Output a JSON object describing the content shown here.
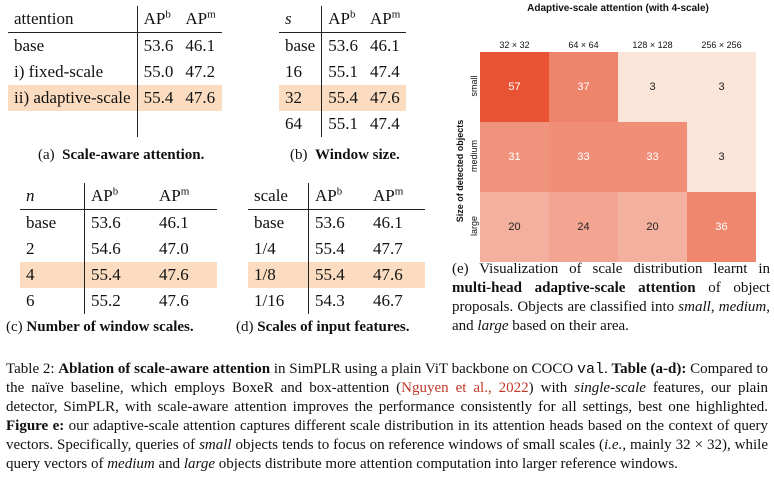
{
  "table_a": {
    "headers": [
      "attention",
      "AP",
      "b",
      "AP",
      "m"
    ],
    "rows": [
      [
        "base",
        "53.6",
        "46.1"
      ],
      [
        "i) fixed-scale",
        "55.0",
        "47.2"
      ],
      [
        "ii) adaptive-scale",
        "55.4",
        "47.6"
      ]
    ],
    "caption_prefix": "(a)",
    "caption": "Scale-aware attention."
  },
  "table_b": {
    "headers": [
      "s",
      "AP",
      "b",
      "AP",
      "m"
    ],
    "rows": [
      [
        "base",
        "53.6",
        "46.1"
      ],
      [
        "16",
        "55.1",
        "47.4"
      ],
      [
        "32",
        "55.4",
        "47.6"
      ],
      [
        "64",
        "55.1",
        "47.4"
      ]
    ],
    "caption_prefix": "(b)",
    "caption": "Window size."
  },
  "table_c": {
    "headers": [
      "n",
      "AP",
      "b",
      "AP",
      "m"
    ],
    "rows": [
      [
        "base",
        "53.6",
        "46.1"
      ],
      [
        "2",
        "54.6",
        "47.0"
      ],
      [
        "4",
        "55.4",
        "47.6"
      ],
      [
        "6",
        "55.2",
        "47.6"
      ]
    ],
    "caption_prefix": "(c)",
    "caption": "Number of window scales."
  },
  "table_d": {
    "headers": [
      "scale",
      "AP",
      "b",
      "AP",
      "m"
    ],
    "rows": [
      [
        "base",
        "53.6",
        "46.1"
      ],
      [
        "1/4",
        "55.4",
        "47.7"
      ],
      [
        "1/8",
        "55.4",
        "47.6"
      ],
      [
        "1/16",
        "54.3",
        "46.7"
      ]
    ],
    "caption_prefix": "(d)",
    "caption": "Scales of input features."
  },
  "chart_data": {
    "type": "heatmap",
    "title": "Adaptive-scale attention (with 4-scale)",
    "xlabel": "",
    "ylabel": "Size of detected objects",
    "columns": [
      "32 × 32",
      "64 × 64",
      "128 × 128",
      "256 × 256"
    ],
    "rows": [
      "small",
      "medium",
      "large"
    ],
    "values": [
      [
        57,
        37,
        3,
        3
      ],
      [
        31,
        33,
        33,
        3
      ],
      [
        20,
        24,
        20,
        36
      ]
    ]
  },
  "caption_e": {
    "p1": "(e) Visualization of scale distribution learnt in ",
    "p2": "multi-head adaptive-scale attention",
    "p3": " of object proposals. Objects are classified into ",
    "p4": "small",
    "p5": ", ",
    "p6": "medium",
    "p7": ", and ",
    "p8": "large",
    "p9": " based on their area."
  },
  "main_caption": {
    "t01": "Table 2: ",
    "t02": "Ablation of scale-aware attention",
    "t03": " in SimPLR using a plain ViT backbone on COCO ",
    "t04": "val",
    "t05": ". ",
    "t06": "Table (a-d):",
    "t07": " Compared to the naïve baseline, which employs BoxeR and box-attention (",
    "t08": "Nguyen et al., 2022",
    "t09": ") with ",
    "t10": "single-scale",
    "t11": " features, our plain detector, SimPLR, with scale-aware attention improves the performance consistently for all settings, best one highlighted. ",
    "t12": "Figure e:",
    "t13": " our adaptive-scale attention captures different scale distribution in its attention heads based on the context of query vectors. Specifically, queries of ",
    "t14": "small",
    "t15": " objects tends to focus on reference windows of small scales (",
    "t16": "i.e.",
    "t17": ", mainly 32 × 32), while query vectors of ",
    "t18": "medium",
    "t19": " and ",
    "t20": "large",
    "t21": " objects distribute more attention computation into larger reference windows."
  }
}
